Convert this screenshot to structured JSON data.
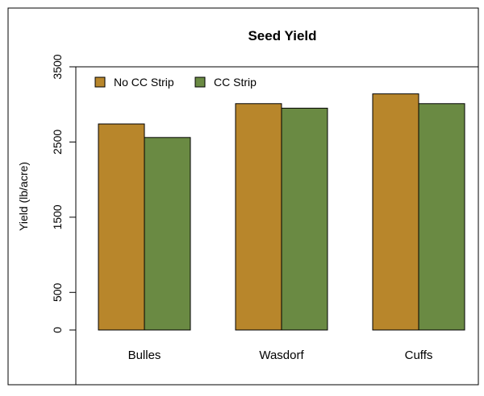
{
  "chart_data": {
    "type": "bar",
    "title": "Seed Yield",
    "xlabel": "",
    "ylabel": "Yield (lb/acre)",
    "categories": [
      "Bulles",
      "Wasdorf",
      "Cuffs"
    ],
    "series": [
      {
        "name": "No CC Strip",
        "color": "#b8862b",
        "values": [
          2740,
          3010,
          3140
        ]
      },
      {
        "name": "CC Strip",
        "color": "#6a8a43",
        "values": [
          2560,
          2950,
          3010
        ]
      }
    ],
    "ylim": [
      0,
      3500
    ],
    "y_ticks": [
      0,
      500,
      1500,
      2500,
      3500
    ],
    "grid": false,
    "legend_position": "top-left"
  }
}
